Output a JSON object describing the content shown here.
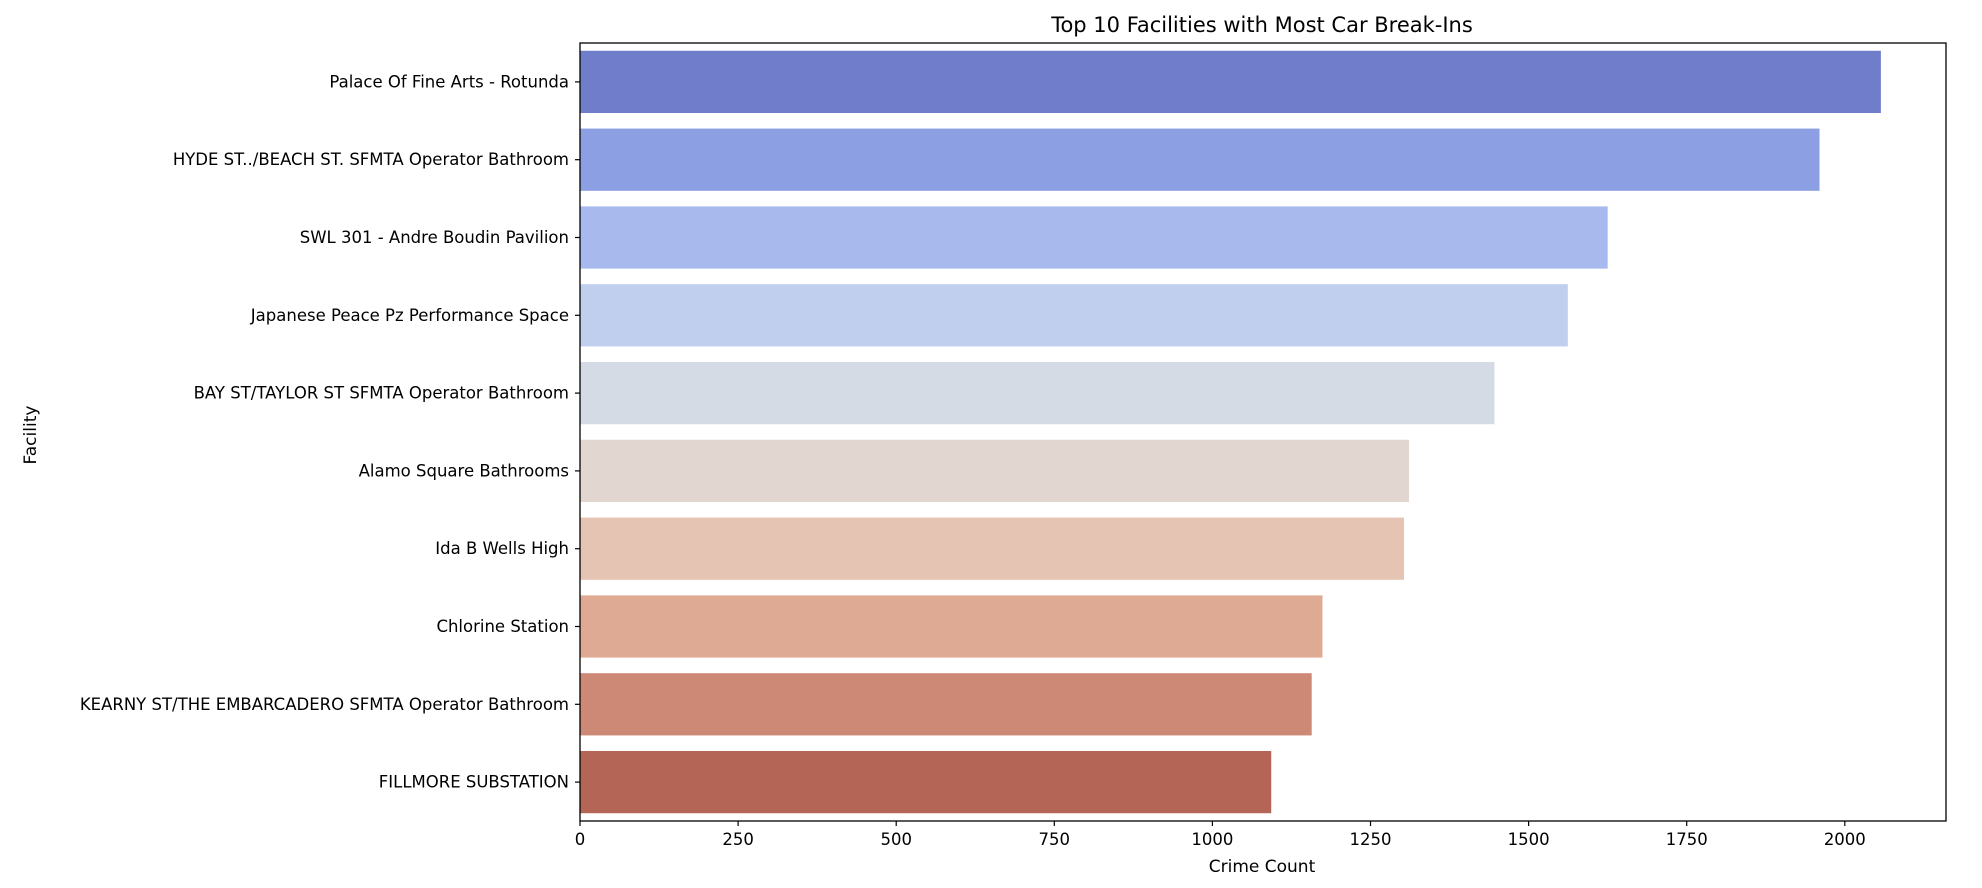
{
  "chart_data": {
    "type": "bar",
    "orientation": "horizontal",
    "title": "Top 10 Facilities with Most Car Break-Ins",
    "xlabel": "Crime Count",
    "ylabel": "Facility",
    "xlim": [
      0,
      2160
    ],
    "xticks": [
      0,
      250,
      500,
      750,
      1000,
      1250,
      1500,
      1750,
      2000
    ],
    "grid": false,
    "categories": [
      "Palace Of Fine Arts - Rotunda",
      "HYDE ST../BEACH ST. SFMTA Operator Bathroom",
      "SWL 301 - Andre Boudin Pavilion",
      "Japanese Peace Pz Performance Space",
      "BAY ST/TAYLOR ST SFMTA Operator Bathroom",
      "Alamo Square Bathrooms",
      "Ida B Wells High",
      "Chlorine Station",
      "KEARNY ST/THE EMBARCADERO SFMTA Operator Bathroom",
      "FILLMORE SUBSTATION"
    ],
    "values": [
      2057,
      1960,
      1625,
      1562,
      1446,
      1311,
      1303,
      1174,
      1157,
      1093
    ],
    "colors": [
      "#6f7dcb",
      "#8b9fe2",
      "#a8b9ee",
      "#c0cfee",
      "#d5dbe4",
      "#e2d6d0",
      "#e6c4b4",
      "#dfaa93",
      "#cd8975",
      "#b46556"
    ]
  }
}
